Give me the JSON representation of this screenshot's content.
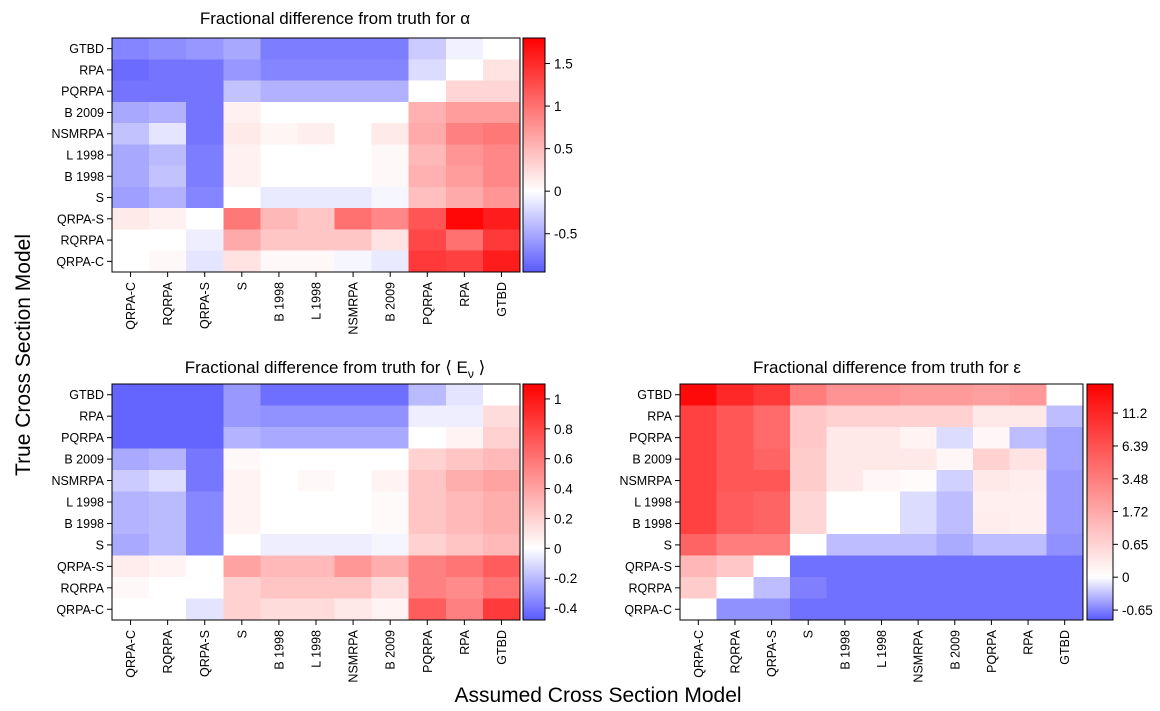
{
  "figure": {
    "xlabel": "Assumed Cross Section Model",
    "ylabel": "True Cross Section Model"
  },
  "chart_data": [
    {
      "type": "heatmap",
      "title": "Fractional difference from truth for α",
      "row_labels": [
        "GTBD",
        "RPA",
        "PQRPA",
        "B 2009",
        "NSMRPA",
        "L 1998",
        "B 1998",
        "S",
        "QRPA-S",
        "RQRPA",
        "QRPA-C"
      ],
      "col_labels": [
        "QRPA-C",
        "RQRPA",
        "QRPA-S",
        "S",
        "B 1998",
        "L 1998",
        "NSMRPA",
        "B 2009",
        "PQRPA",
        "RPA",
        "GTBD"
      ],
      "colorbar": {
        "min": -0.95,
        "max": 1.8,
        "ticks": [
          -0.5,
          0,
          0.5,
          1,
          1.5
        ],
        "tick_labels": [
          "-0.5",
          "0",
          "0.5",
          "1",
          "1.5"
        ]
      },
      "values": [
        [
          -0.7,
          -0.65,
          -0.6,
          -0.5,
          -0.75,
          -0.75,
          -0.75,
          -0.75,
          -0.3,
          -0.08,
          0.0
        ],
        [
          -0.85,
          -0.8,
          -0.8,
          -0.6,
          -0.7,
          -0.7,
          -0.7,
          -0.7,
          -0.2,
          0.0,
          0.2
        ],
        [
          -0.8,
          -0.8,
          -0.8,
          -0.35,
          -0.45,
          -0.45,
          -0.45,
          -0.45,
          0.0,
          0.3,
          0.3
        ],
        [
          -0.5,
          -0.45,
          -0.8,
          0.1,
          0.0,
          0.0,
          0.0,
          0.0,
          0.55,
          0.7,
          0.7
        ],
        [
          -0.35,
          -0.15,
          -0.8,
          0.15,
          0.07,
          0.12,
          0.0,
          0.15,
          0.6,
          0.9,
          0.95
        ],
        [
          -0.5,
          -0.4,
          -0.75,
          0.1,
          0.0,
          0.0,
          0.0,
          0.05,
          0.5,
          0.75,
          0.85
        ],
        [
          -0.5,
          -0.35,
          -0.75,
          0.1,
          0.0,
          0.0,
          0.0,
          0.05,
          0.55,
          0.7,
          0.85
        ],
        [
          -0.55,
          -0.45,
          -0.7,
          0.0,
          -0.12,
          -0.12,
          -0.12,
          -0.05,
          0.45,
          0.6,
          0.75
        ],
        [
          0.15,
          0.1,
          0.0,
          0.95,
          0.5,
          0.4,
          1.0,
          0.85,
          1.2,
          1.75,
          1.6
        ],
        [
          0.0,
          0.0,
          -0.1,
          0.6,
          0.4,
          0.4,
          0.4,
          0.2,
          1.3,
          1.0,
          1.4
        ],
        [
          0.0,
          0.05,
          -0.15,
          0.2,
          0.05,
          0.05,
          -0.05,
          -0.12,
          1.4,
          1.35,
          1.6
        ]
      ]
    },
    {
      "type": "heatmap",
      "title": "Fractional difference from truth for ⟨ E",
      "title_subscript": "ν",
      "title_suffix": " ⟩",
      "row_labels": [
        "GTBD",
        "RPA",
        "PQRPA",
        "B 2009",
        "NSMRPA",
        "L 1998",
        "B 1998",
        "S",
        "QRPA-S",
        "RQRPA",
        "QRPA-C"
      ],
      "col_labels": [
        "QRPA-C",
        "RQRPA",
        "QRPA-S",
        "S",
        "B 1998",
        "L 1998",
        "NSMRPA",
        "B 2009",
        "PQRPA",
        "RPA",
        "GTBD"
      ],
      "colorbar": {
        "min": -0.48,
        "max": 1.1,
        "ticks": [
          -0.4,
          -0.2,
          0,
          0.2,
          0.4,
          0.6,
          0.8,
          1
        ],
        "tick_labels": [
          "-0.4",
          "-0.2",
          "0",
          "0.2",
          "0.4",
          "0.6",
          "0.8",
          "1"
        ]
      },
      "values": [
        [
          -0.45,
          -0.45,
          -0.45,
          -0.3,
          -0.42,
          -0.42,
          -0.42,
          -0.42,
          -0.2,
          -0.08,
          0.0
        ],
        [
          -0.45,
          -0.45,
          -0.45,
          -0.3,
          -0.32,
          -0.32,
          -0.32,
          -0.32,
          -0.05,
          -0.05,
          0.15
        ],
        [
          -0.45,
          -0.45,
          -0.45,
          -0.22,
          -0.25,
          -0.25,
          -0.25,
          -0.25,
          0.0,
          0.05,
          0.2
        ],
        [
          -0.25,
          -0.22,
          -0.4,
          0.03,
          0.0,
          0.0,
          0.0,
          0.0,
          0.2,
          0.25,
          0.3
        ],
        [
          -0.15,
          -0.1,
          -0.4,
          0.05,
          0.0,
          0.03,
          0.0,
          0.05,
          0.25,
          0.35,
          0.4
        ],
        [
          -0.22,
          -0.2,
          -0.35,
          0.05,
          0.0,
          0.0,
          0.0,
          0.02,
          0.25,
          0.3,
          0.35
        ],
        [
          -0.22,
          -0.2,
          -0.35,
          0.05,
          0.0,
          0.0,
          0.0,
          0.02,
          0.25,
          0.3,
          0.35
        ],
        [
          -0.25,
          -0.2,
          -0.35,
          0.0,
          -0.05,
          -0.05,
          -0.05,
          -0.03,
          0.2,
          0.25,
          0.3
        ],
        [
          0.08,
          0.05,
          0.0,
          0.4,
          0.3,
          0.3,
          0.45,
          0.35,
          0.55,
          0.6,
          0.7
        ],
        [
          0.03,
          0.0,
          0.0,
          0.2,
          0.25,
          0.25,
          0.25,
          0.15,
          0.55,
          0.5,
          0.6
        ],
        [
          0.0,
          0.0,
          -0.08,
          0.2,
          0.15,
          0.15,
          0.1,
          0.05,
          0.7,
          0.55,
          0.85
        ]
      ]
    },
    {
      "type": "heatmap",
      "title": "Fractional difference from truth for ε",
      "row_labels": [
        "GTBD",
        "RPA",
        "PQRPA",
        "B 2009",
        "NSMRPA",
        "L 1998",
        "B 1998",
        "S",
        "QRPA-S",
        "RQRPA",
        "QRPA-C"
      ],
      "col_labels": [
        "QRPA-C",
        "RQRPA",
        "QRPA-S",
        "S",
        "B 1998",
        "L 1998",
        "NSMRPA",
        "B 2009",
        "PQRPA",
        "RPA",
        "GTBD"
      ],
      "colorbar": {
        "scale": "signed-log",
        "min": -0.92,
        "max": 18,
        "ticks": [
          -0.65,
          0,
          0.65,
          1.72,
          3.48,
          6.39,
          11.2
        ],
        "tick_labels": [
          "-0.65",
          "0",
          "0.65",
          "1.72",
          "3.48",
          "6.39",
          "11.2"
        ]
      },
      "values": [
        [
          16,
          11,
          9,
          3.5,
          2.5,
          2.5,
          2.2,
          2.2,
          2,
          2.3,
          0
        ],
        [
          8,
          6,
          4.5,
          0.9,
          0.7,
          0.7,
          0.7,
          0.7,
          0.3,
          0.3,
          -0.3
        ],
        [
          8,
          6,
          4.5,
          0.9,
          0.3,
          0.3,
          0.15,
          -0.15,
          0.1,
          -0.3,
          -0.45
        ],
        [
          8,
          6,
          5,
          0.8,
          0.3,
          0.3,
          0.3,
          0.1,
          0.7,
          0.4,
          -0.45
        ],
        [
          8,
          6,
          6,
          0.8,
          0.3,
          0.1,
          0.05,
          -0.2,
          0.3,
          0.25,
          -0.5
        ],
        [
          8,
          5.5,
          5,
          0.6,
          0.0,
          0.0,
          -0.15,
          -0.3,
          0.2,
          0.2,
          -0.5
        ],
        [
          8,
          5.5,
          5,
          0.6,
          0.0,
          0.0,
          -0.15,
          -0.3,
          0.25,
          0.2,
          -0.5
        ],
        [
          5,
          3.5,
          3.5,
          0.0,
          -0.3,
          -0.3,
          -0.3,
          -0.4,
          -0.3,
          -0.3,
          -0.55
        ],
        [
          1.3,
          0.9,
          0.0,
          -0.75,
          -0.75,
          -0.75,
          -0.75,
          -0.75,
          -0.75,
          -0.75,
          -0.75
        ],
        [
          0.8,
          0.0,
          -0.3,
          -0.65,
          -0.75,
          -0.75,
          -0.75,
          -0.75,
          -0.75,
          -0.75,
          -0.75
        ],
        [
          0.0,
          -0.55,
          -0.55,
          -0.75,
          -0.75,
          -0.75,
          -0.75,
          -0.75,
          -0.75,
          -0.75,
          -0.75
        ]
      ]
    }
  ],
  "colors": {
    "positive": "#ff0000",
    "negative": "#5a5aff",
    "zero": "#ffffff"
  }
}
